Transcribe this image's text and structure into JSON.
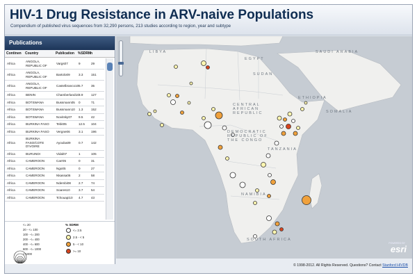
{
  "header": {
    "title": "HIV-1 Drug Resistance in ARV-naive Populations",
    "subtitle": "Compendium of published virus sequences from 32,290 persons, 213 studies according to region, year and subtype"
  },
  "panel": {
    "title": "Publications",
    "columns": [
      "Continen",
      "Country",
      "Publication",
      "%SDRM",
      "n"
    ],
    "rows": [
      [
        "Africa",
        "ANGOLA, REPUBLIC OF",
        "Vargs07",
        "9",
        "29"
      ],
      [
        "Africa",
        "ANGOLA, REPUBLIC OF",
        "Bartolo09",
        "3.3",
        "151"
      ],
      [
        "Africa",
        "ANGOLA, REPUBLIC OF",
        "Castelbranco10",
        "5.7",
        "35"
      ],
      [
        "Africa",
        "BENIN",
        "Chamberland10",
        "3.9",
        "127"
      ],
      [
        "Africa",
        "BOTSWANA",
        "Bussmann05",
        "0",
        "71"
      ],
      [
        "Africa",
        "BOTSWANA",
        "Bussmann10",
        "1.3",
        "152"
      ],
      [
        "Africa",
        "BOTSWANA",
        "Novitsky07",
        "9.5",
        "42"
      ],
      [
        "Africa",
        "BURKINA FASO",
        "Tebit05",
        "12.5",
        "104"
      ],
      [
        "Africa",
        "BURKINA FASO",
        "Vergne06",
        "3.1",
        "196"
      ],
      [
        "Africa",
        "BURKINA FASO/COTE D'IVOIRE",
        "Ayouba09",
        "0.7",
        "142"
      ],
      [
        "Africa",
        "BURUNDI",
        "Vidal07",
        "1",
        "105"
      ],
      [
        "Africa",
        "CAMEROON",
        "Carr05",
        "0",
        "31"
      ],
      [
        "Africa",
        "CAMEROON",
        "Ngo05",
        "0",
        "27"
      ],
      [
        "Africa",
        "CAMEROON",
        "Nkassa06",
        "2",
        "58"
      ],
      [
        "Africa",
        "CAMEROON",
        "Ndembi08",
        "2.7",
        "74"
      ],
      [
        "Africa",
        "CAMEROON",
        "Soares10",
        "3.7",
        "54"
      ],
      [
        "Africa",
        "CAMEROON",
        "Tchouapi10",
        "4.7",
        "43"
      ]
    ]
  },
  "legend": {
    "sizes": [
      "<= 20",
      "20 - <= 100",
      "100 - <= 200",
      "200 - <= 400",
      "400 - <= 600",
      "600 - <= 1000",
      "> 1000"
    ],
    "drm_title": "% SDRM",
    "drm_items": [
      {
        "label": "<= 2.5",
        "color": "#ffffff"
      },
      {
        "label": "2.5 - < 5",
        "color": "#fff6b0"
      },
      {
        "label": "5 - < 10",
        "color": "#f0a13c"
      },
      {
        "label": ">= 10",
        "color": "#d8441e"
      }
    ]
  },
  "map": {
    "labels": {
      "libya": "LIBYA",
      "saudi": "SAUDI ARABIA",
      "egypt": "EGYPT",
      "sudan": "SUDAN",
      "ethiopia": "ETHIOPIA",
      "somalia": "SOMALIA",
      "car": "CENTRAL AFRICAN REPUBLIC",
      "drc": "DEMOCRATIC REPUBLIC OF THE CONGO",
      "tanzania": "TANZANIA",
      "namibia": "NAMIBIA",
      "south_africa": "SOUTH AFRICA"
    },
    "logo": "esri",
    "logo_sub": "POWERED BY"
  },
  "footer": {
    "text": "© 1998-2012. All Rights Reserved. Questions? Contact",
    "link": "Stanford HIVDB"
  },
  "colors": {
    "header_title": "#0f2d52",
    "panel_title_bg": "#1d3558",
    "land": "#f0f0ee",
    "sea": "#c6ccd3"
  }
}
